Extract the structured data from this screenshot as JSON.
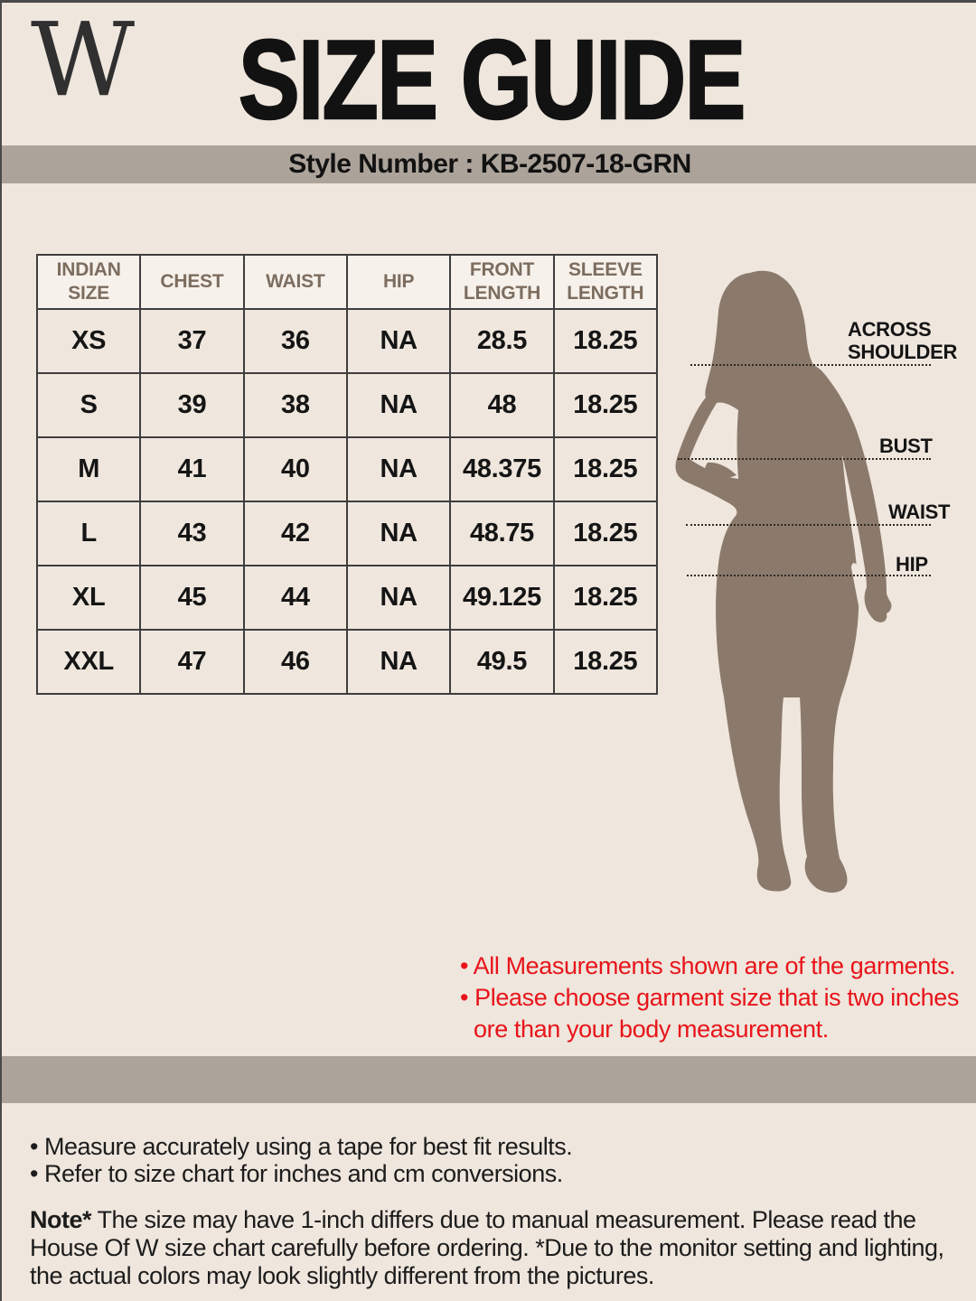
{
  "header": {
    "logo": "W",
    "title": "SIZE GUIDE",
    "style_bar": "Style Number : KB-2507-18-GRN"
  },
  "size_table": {
    "columns": [
      "INDIAN SIZE",
      "CHEST",
      "WAIST",
      "HIP",
      "FRONT LENGTH",
      "SLEEVE LENGTH"
    ],
    "rows": [
      [
        "XS",
        "37",
        "36",
        "NA",
        "28.5",
        "18.25"
      ],
      [
        "S",
        "39",
        "38",
        "NA",
        "48",
        "18.25"
      ],
      [
        "M",
        "41",
        "40",
        "NA",
        "48.375",
        "18.25"
      ],
      [
        "L",
        "43",
        "42",
        "NA",
        "48.75",
        "18.25"
      ],
      [
        "XL",
        "45",
        "44",
        "NA",
        "49.125",
        "18.25"
      ],
      [
        "XXL",
        "47",
        "46",
        "NA",
        "49.5",
        "18.25"
      ]
    ]
  },
  "figure": {
    "labels": {
      "across_shoulder": "ACROSS SHOULDER",
      "bust": "BUST",
      "waist": "WAIST",
      "hip": "HIP"
    },
    "silhouette_color": "#8b7a6b"
  },
  "garment_notes": {
    "line1": "• All Measurements shown are of the garments.",
    "line2": "• Please choose garment size that is two inches",
    "line3": "ore than your body measurement.",
    "color": "#e8141a"
  },
  "footer": {
    "bullet1": "• Measure accurately using a tape for best fit results.",
    "bullet2": "• Refer to size chart for inches and cm conversions.",
    "note_lead": "Note*",
    "note_body": " The size may have 1-inch differs due to manual measurement. Please read the House Of W size chart carefully before ordering. *Due to the monitor setting and lighting, the actual colors may look slightly different from the pictures."
  },
  "colors": {
    "page_bg": "#efe6dd",
    "band_bg": "#aca39a",
    "table_header_bg": "#f7f1eb",
    "table_header_text": "#7c6d5f",
    "table_border": "#3e3e3e",
    "text": "#161616",
    "note_red": "#e8141a",
    "silhouette": "#8b7a6b"
  }
}
